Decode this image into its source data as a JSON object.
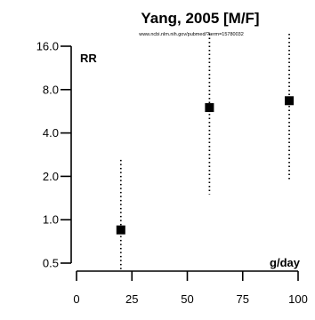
{
  "chart_data": {
    "type": "scatter",
    "title": "Yang, 2005 [M/F]",
    "subtitle": "www.ncbi.nlm.nih.gov/pubmed/?term=15780032",
    "ylabel": "RR",
    "xlabel": "g/day",
    "y_scale": "log2",
    "ylim": [
      0.5,
      16.0
    ],
    "xlim": [
      0,
      100
    ],
    "y_ticks": [
      "16.0",
      "8.0",
      "4.0",
      "2.0",
      "1.0",
      "0.5"
    ],
    "x_ticks": [
      "0",
      "25",
      "50",
      "75",
      "100"
    ],
    "points": [
      {
        "x": 20,
        "y": 0.85,
        "lower": 0.5,
        "upper": 2.6
      },
      {
        "x": 60,
        "y": 6.0,
        "lower": 1.5,
        "upper": 16.0
      },
      {
        "x": 96,
        "y": 6.7,
        "lower": 1.9,
        "upper": 16.0
      }
    ]
  }
}
